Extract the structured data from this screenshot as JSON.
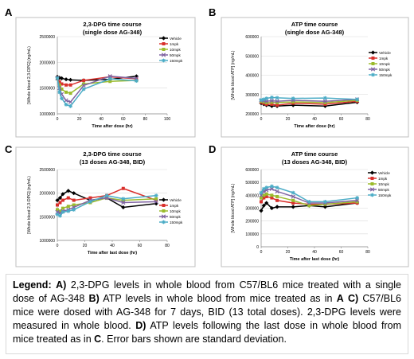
{
  "colors": {
    "series": [
      "#000000",
      "#d9302c",
      "#9bbb2c",
      "#8064a2",
      "#4bacc6"
    ],
    "panel_border": "#bfbfbf",
    "grid": "#d9d9d9"
  },
  "series_names": [
    "Vehicle",
    "1mpk",
    "10mpk",
    "50mpk",
    "150mpk"
  ],
  "chart_data": [
    {
      "panel": "A",
      "type": "line",
      "title_line1": "2,3-DPG time course",
      "title_line2": "(single dose AG-348)",
      "xlabel": "Time after dose (hr)",
      "ylabel": "[Whole blood 2,3-DPG] (ng/mL)",
      "xlim": [
        0,
        100
      ],
      "ylim": [
        1000000,
        2500000
      ],
      "yticks": [
        "1000000",
        "1500000",
        "2000000",
        "2500000"
      ],
      "yticks_values": [
        1000000,
        1500000,
        2000000,
        2500000
      ],
      "xticks": [
        0,
        20,
        40,
        60,
        80,
        100
      ],
      "x": [
        0,
        2,
        4,
        8,
        12,
        24,
        48,
        72
      ],
      "series": [
        {
          "name": "Vehicle",
          "values": [
            1720000,
            1700000,
            1690000,
            1670000,
            1660000,
            1650000,
            1670000,
            1730000
          ]
        },
        {
          "name": "1mpk",
          "values": [
            1700000,
            1620000,
            1580000,
            1560000,
            1560000,
            1650000,
            1720000,
            1680000
          ]
        },
        {
          "name": "10mpk",
          "values": [
            1680000,
            1560000,
            1480000,
            1420000,
            1400000,
            1580000,
            1630000,
            1650000
          ]
        },
        {
          "name": "50mpk",
          "values": [
            1690000,
            1500000,
            1380000,
            1260000,
            1230000,
            1550000,
            1730000,
            1690000
          ]
        },
        {
          "name": "150mpk",
          "values": [
            1700000,
            1420000,
            1300000,
            1180000,
            1150000,
            1480000,
            1680000,
            1640000
          ]
        }
      ]
    },
    {
      "panel": "B",
      "type": "line",
      "title_line1": "ATP time course",
      "title_line2": "(single dose AG-348)",
      "xlabel": "Time after dose (hr)",
      "ylabel": "[Whole blood ATP] (ng/mL)",
      "xlim": [
        0,
        80
      ],
      "ylim": [
        200000,
        600000
      ],
      "yticks": [
        "200000",
        "300000",
        "400000",
        "500000",
        "600000"
      ],
      "yticks_values": [
        200000,
        300000,
        400000,
        500000,
        600000
      ],
      "xticks": [
        0,
        20,
        40,
        60,
        80
      ],
      "x": [
        0,
        2,
        4,
        8,
        12,
        24,
        48,
        72
      ],
      "series": [
        {
          "name": "Vehicle",
          "values": [
            255000,
            250000,
            245000,
            240000,
            240000,
            245000,
            240000,
            260000
          ]
        },
        {
          "name": "1mpk",
          "values": [
            260000,
            255000,
            250000,
            250000,
            245000,
            255000,
            250000,
            265000
          ]
        },
        {
          "name": "10mpk",
          "values": [
            265000,
            262000,
            258000,
            260000,
            258000,
            262000,
            258000,
            270000
          ]
        },
        {
          "name": "50mpk",
          "values": [
            270000,
            268000,
            265000,
            268000,
            265000,
            270000,
            265000,
            275000
          ]
        },
        {
          "name": "150mpk",
          "values": [
            272000,
            275000,
            280000,
            285000,
            283000,
            280000,
            282000,
            275000
          ]
        }
      ]
    },
    {
      "panel": "C",
      "type": "line",
      "title_line1": "2,3-DPG time course",
      "title_line2": "(13 doses AG-348, BID)",
      "xlabel": "Time after last dose (hr)",
      "ylabel": "[Whole blood 2,3-DPG] (ng/mL)",
      "xlim": [
        0,
        80
      ],
      "ylim": [
        1000000,
        2500000
      ],
      "yticks": [
        "1000000",
        "1500000",
        "2000000",
        "2500000"
      ],
      "yticks_values": [
        1000000,
        1500000,
        2000000,
        2500000
      ],
      "xticks": [
        0,
        20,
        40,
        60,
        80
      ],
      "x": [
        0,
        2,
        4,
        8,
        12,
        24,
        36,
        48,
        72
      ],
      "series": [
        {
          "name": "Vehicle",
          "values": [
            1850000,
            1900000,
            1980000,
            2050000,
            2000000,
            1850000,
            1900000,
            1700000,
            1780000
          ]
        },
        {
          "name": "1mpk",
          "values": [
            1750000,
            1800000,
            1850000,
            1900000,
            1850000,
            1900000,
            1950000,
            2100000,
            1850000
          ]
        },
        {
          "name": "10mpk",
          "values": [
            1650000,
            1620000,
            1680000,
            1720000,
            1750000,
            1800000,
            1900000,
            1850000,
            1880000
          ]
        },
        {
          "name": "50mpk",
          "values": [
            1600000,
            1580000,
            1620000,
            1650000,
            1700000,
            1850000,
            1900000,
            1800000,
            1820000
          ]
        },
        {
          "name": "150mpk",
          "values": [
            1550000,
            1520000,
            1600000,
            1620000,
            1650000,
            1820000,
            1950000,
            1880000,
            1950000
          ]
        }
      ]
    },
    {
      "panel": "D",
      "type": "line",
      "title_line1": "ATP time course",
      "title_line2": "(13 doses AG-348, BID)",
      "xlabel": "Time after last dose (hr)",
      "ylabel": "[Whole blood ATP] (ng/mL)",
      "xlim": [
        0,
        80
      ],
      "ylim": [
        0,
        600000
      ],
      "yticks": [
        "0",
        "100000",
        "200000",
        "300000",
        "400000",
        "500000",
        "600000"
      ],
      "yticks_values": [
        0,
        100000,
        200000,
        300000,
        400000,
        500000,
        600000
      ],
      "xticks": [
        0,
        20,
        40,
        60,
        80
      ],
      "x": [
        0,
        2,
        4,
        8,
        12,
        24,
        36,
        48,
        72
      ],
      "series": [
        {
          "name": "Vehicle",
          "values": [
            280000,
            320000,
            340000,
            300000,
            310000,
            310000,
            320000,
            310000,
            340000
          ]
        },
        {
          "name": "1mpk",
          "values": [
            350000,
            380000,
            390000,
            380000,
            360000,
            340000,
            330000,
            330000,
            340000
          ]
        },
        {
          "name": "10mpk",
          "values": [
            380000,
            400000,
            410000,
            400000,
            390000,
            360000,
            320000,
            330000,
            350000
          ]
        },
        {
          "name": "50mpk",
          "values": [
            400000,
            430000,
            440000,
            450000,
            430000,
            390000,
            340000,
            340000,
            360000
          ]
        },
        {
          "name": "150mpk",
          "values": [
            420000,
            450000,
            460000,
            470000,
            460000,
            420000,
            350000,
            350000,
            380000
          ]
        }
      ]
    }
  ],
  "caption": {
    "legend_label": "Legend:",
    "p1_letter": "A)",
    "p1_text": " 2,3-DPG levels in whole blood from C57/BL6 mice treated with a single dose of AG-348 ",
    "p2_letter": "B)",
    "p2_text": " ATP levels in whole blood from mice treated as in ",
    "p2_ref": "A",
    "p2_sep": "  ",
    "p3_letter": "C)",
    "p3_text": " C57/BL6 mice were dosed with AG-348 for 7 days, BID (13 total doses). 2,3-DPG levels were measured in whole blood.  ",
    "p4_letter": "D)",
    "p4_text": " ATP levels following the last dose in whole blood from mice treated as in ",
    "p4_ref": "C",
    "p4_end": ". Error bars shown are standard deviation."
  }
}
